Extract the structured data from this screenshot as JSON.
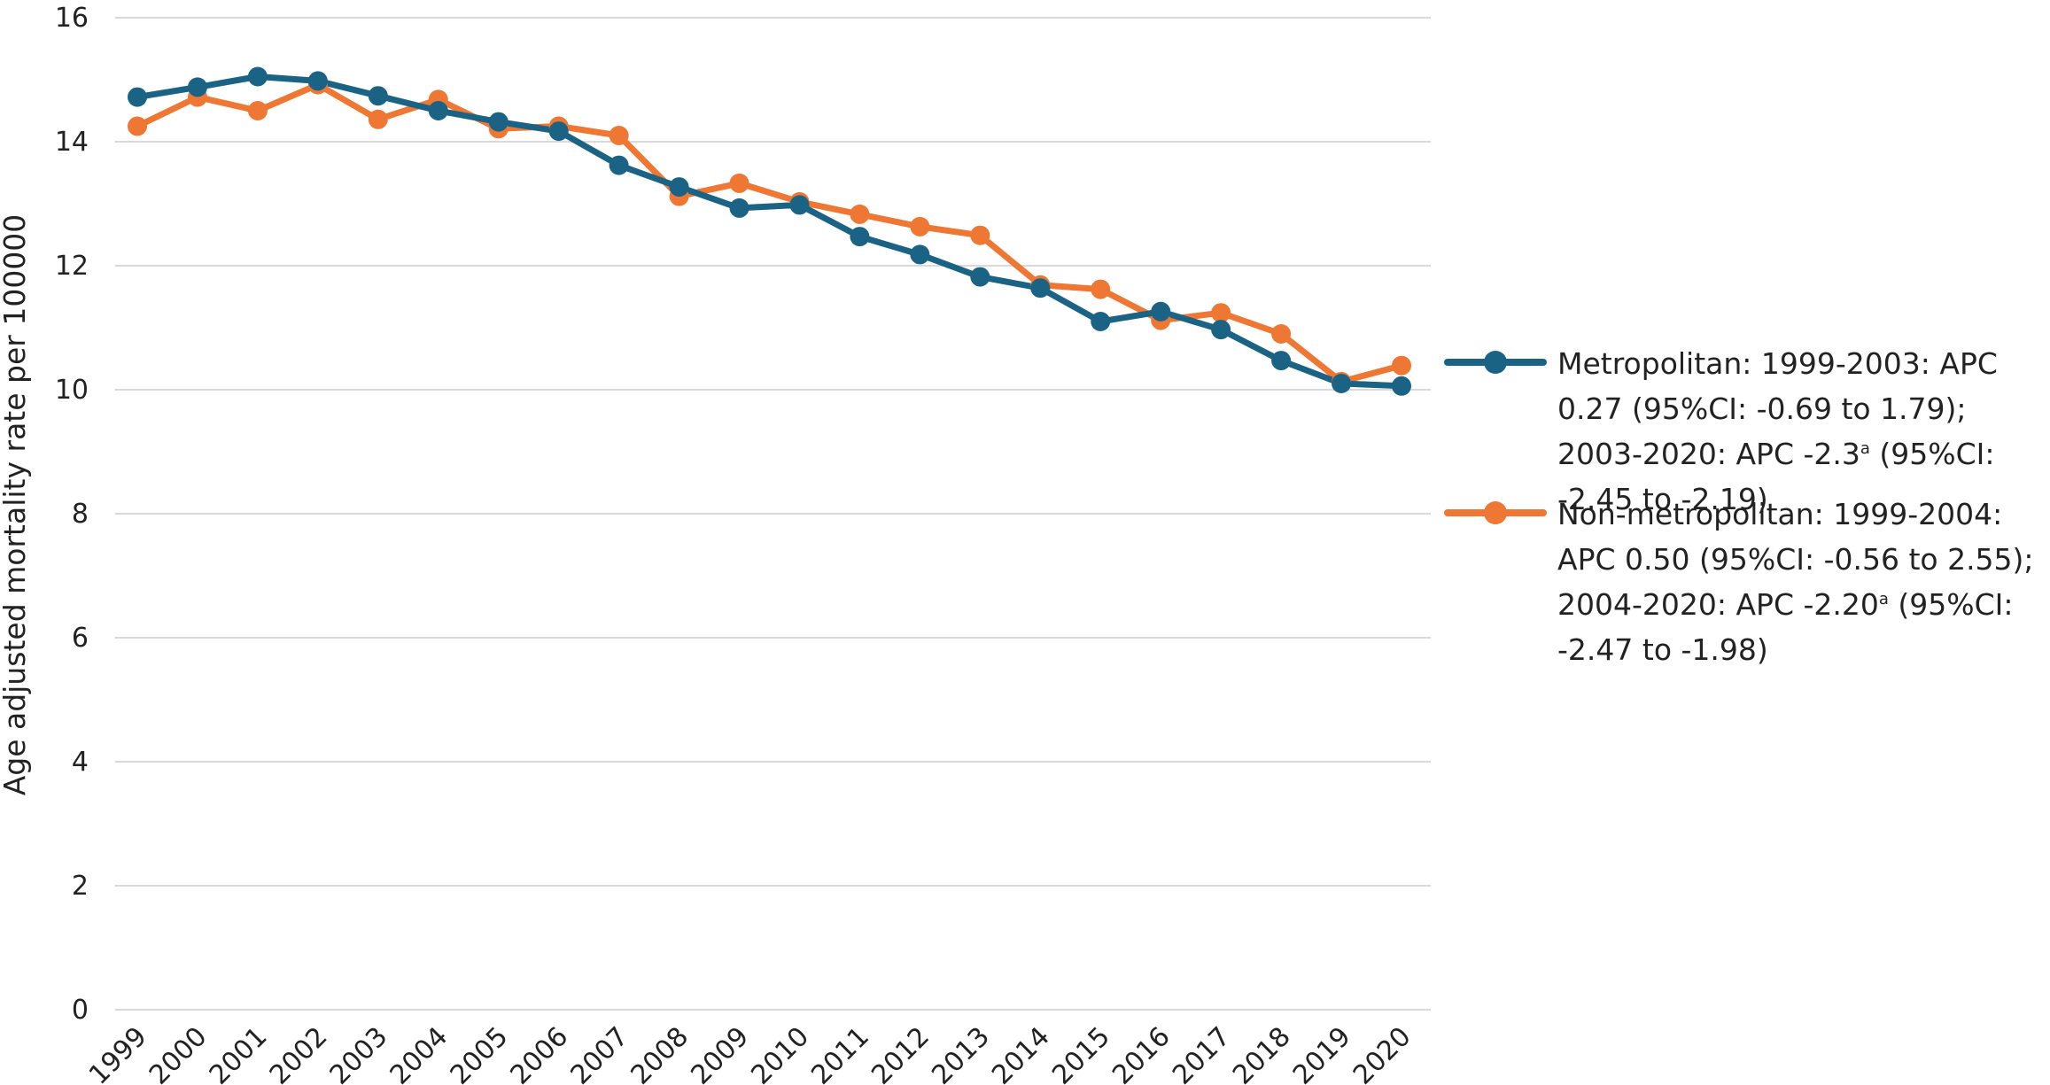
{
  "chart_data": {
    "type": "line",
    "title": "",
    "xlabel": "",
    "ylabel": "Age adjusted mortality rate per 100000",
    "ylim": [
      0,
      16
    ],
    "yticks": [
      "0",
      "2",
      "4",
      "6",
      "8",
      "10",
      "12",
      "14",
      "16"
    ],
    "grid": true,
    "legend_position": "right",
    "categories": [
      "1999",
      "2000",
      "2001",
      "2002",
      "2003",
      "2004",
      "2005",
      "2006",
      "2007",
      "2008",
      "2009",
      "2010",
      "2011",
      "2012",
      "2013",
      "2014",
      "2015",
      "2016",
      "2017",
      "2018",
      "2019",
      "2020"
    ],
    "series": [
      {
        "legend_main": "Metropolitan: 1999-2003: APC 0.27 (95%CI: -0.69 to 1.79); 2003-2020: APC -2.3",
        "legend_sup": "a",
        "legend_tail": " (95%CI: -2.45 to -2.19)",
        "color": "#1b6384",
        "values": [
          14.72,
          14.88,
          15.05,
          14.98,
          14.74,
          14.5,
          14.32,
          14.17,
          13.62,
          13.27,
          12.93,
          12.98,
          12.47,
          12.18,
          11.82,
          11.64,
          11.1,
          11.26,
          10.97,
          10.47,
          10.1,
          10.06
        ]
      },
      {
        "legend_main": "Non-metropolitan: 1999-2004: APC 0.50 (95%CI: -0.56 to 2.55); 2004-2020: APC -2.20",
        "legend_sup": "a",
        "legend_tail": " (95%CI: -2.47 to -1.98)",
        "color": "#ee7733",
        "values": [
          14.25,
          14.72,
          14.5,
          14.92,
          14.36,
          14.68,
          14.21,
          14.25,
          14.1,
          13.12,
          13.33,
          13.03,
          12.83,
          12.63,
          12.49,
          11.69,
          11.62,
          11.12,
          11.24,
          10.9,
          10.13,
          10.39
        ]
      }
    ]
  }
}
